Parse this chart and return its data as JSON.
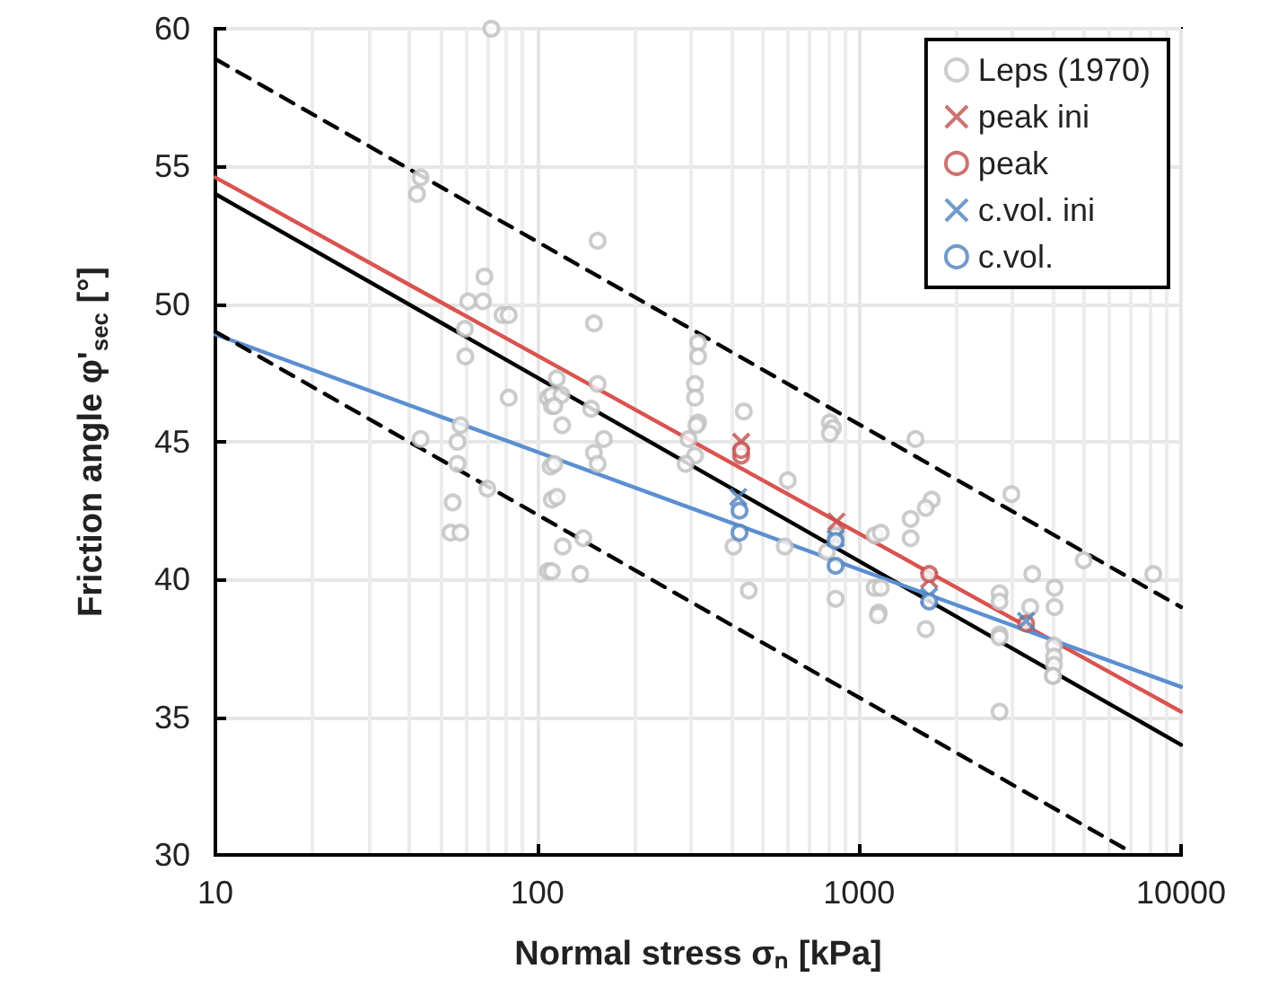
{
  "chart_data": {
    "type": "scatter",
    "xlabel": "Normal stress σₙ [kPa]",
    "ylabel": "Friction angle φ'$_{sec}$ [°]",
    "log": "x",
    "xlim": [
      10,
      10000
    ],
    "xticks": [
      10,
      100,
      1000,
      10000
    ],
    "ylim": [
      30,
      60
    ],
    "yticks": [
      30,
      35,
      40,
      45,
      50,
      55,
      60
    ],
    "grid": true,
    "legend": "top right",
    "series": [
      {
        "name": "Leps (1970)",
        "type": "scatter",
        "marker": "circle",
        "color": "#bfbfbf",
        "x": [
          72,
          43.4,
          42.3,
          68.5,
          61,
          67.8,
          78,
          81.5,
          59.6,
          59.8,
          81.5,
          108,
          111,
          57.7,
          43.4,
          56.5,
          56.5,
          70,
          54.6,
          53.8,
          57.7,
          110,
          111,
          108,
          154,
          150,
          115,
          111,
          119,
          113,
          119.5,
          154,
          147,
          161,
          150,
          154,
          113,
          115,
          120,
          139,
          111,
          136,
          316,
          316,
          309,
          309,
          316,
          312,
          295,
          309,
          289,
          438,
          600,
          407,
          587,
          454,
          811,
          829,
          811,
          845,
          794,
          1117,
          845,
          1117,
          1150,
          1496,
          1680,
          1610,
          1445,
          1445,
          1167,
          1167,
          1144,
          1610,
          2972,
          3450,
          2730,
          2730,
          3400,
          4045,
          4045,
          2730,
          2730,
          4030,
          4030,
          4030,
          4000,
          2730,
          4000,
          4980,
          8200
        ],
        "values": [
          60,
          54.6,
          54.0,
          51.0,
          50.1,
          50.1,
          49.6,
          49.6,
          49.1,
          48.1,
          46.6,
          46.6,
          46.3,
          45.6,
          45.1,
          45.0,
          44.2,
          43.3,
          42.8,
          41.7,
          41.7,
          44.1,
          42.9,
          40.3,
          52.3,
          49.3,
          47.3,
          46.7,
          46.7,
          46.3,
          45.6,
          47.1,
          46.2,
          45.1,
          44.6,
          44.2,
          44.2,
          43.0,
          41.2,
          41.5,
          40.3,
          40.2,
          48.6,
          48.1,
          47.1,
          46.6,
          45.7,
          45.6,
          45.1,
          44.5,
          44.2,
          46.1,
          43.6,
          41.2,
          41.2,
          39.6,
          45.7,
          45.5,
          45.3,
          41.6,
          41.0,
          41.6,
          39.3,
          39.7,
          38.8,
          45.1,
          42.9,
          42.6,
          42.2,
          41.5,
          41.7,
          39.7,
          38.7,
          38.2,
          43.1,
          40.2,
          39.5,
          39.2,
          39.0,
          39.7,
          39.0,
          38.0,
          37.9,
          37.6,
          37.2,
          36.9,
          36.5,
          35.2,
          36.5,
          40.7,
          40.2
        ]
      },
      {
        "name": "peak ini",
        "type": "scatter",
        "marker": "cross",
        "color": "#c0504d",
        "x": [
          430,
          850,
          1650
        ],
        "values": [
          45.0,
          42.1,
          40.0
        ]
      },
      {
        "name": "peak",
        "type": "scatter",
        "marker": "circle",
        "color": "#c0504d",
        "x": [
          430,
          430,
          1650,
          3300
        ],
        "values": [
          44.5,
          44.7,
          40.2,
          38.4
        ]
      },
      {
        "name": "c.vol. ini",
        "type": "scatter",
        "marker": "cross",
        "color": "#4f81bd",
        "x": [
          421,
          845,
          1650,
          3300
        ],
        "values": [
          43.0,
          41.5,
          39.4,
          38.5
        ]
      },
      {
        "name": "c.vol.",
        "type": "scatter",
        "marker": "circle",
        "color": "#4f81bd",
        "x": [
          425,
          425,
          845,
          845,
          1650
        ],
        "values": [
          42.5,
          41.7,
          41.4,
          40.5,
          39.2
        ]
      },
      {
        "type": "line",
        "marker": "none",
        "line_style": "solid",
        "color": "#d9534f",
        "x": [
          10,
          10000
        ],
        "values": [
          54.6,
          35.2
        ]
      },
      {
        "type": "line",
        "marker": "none",
        "line_style": "solid",
        "color": "#000000",
        "x": [
          10,
          10000
        ],
        "values": [
          54.0,
          34.0
        ]
      },
      {
        "type": "line",
        "marker": "none",
        "line_style": "solid",
        "color": "#5b8fd0",
        "x": [
          10,
          10000
        ],
        "values": [
          48.9,
          36.1
        ]
      },
      {
        "type": "line",
        "marker": "none",
        "line_style": "dashed",
        "color": "#000000",
        "x": [
          10,
          10000
        ],
        "values": [
          58.9,
          39.0
        ]
      },
      {
        "type": "line",
        "marker": "none",
        "line_style": "dashed",
        "color": "#000000",
        "x": [
          10,
          7000
        ],
        "values": [
          49.0,
          30.1
        ]
      }
    ]
  }
}
